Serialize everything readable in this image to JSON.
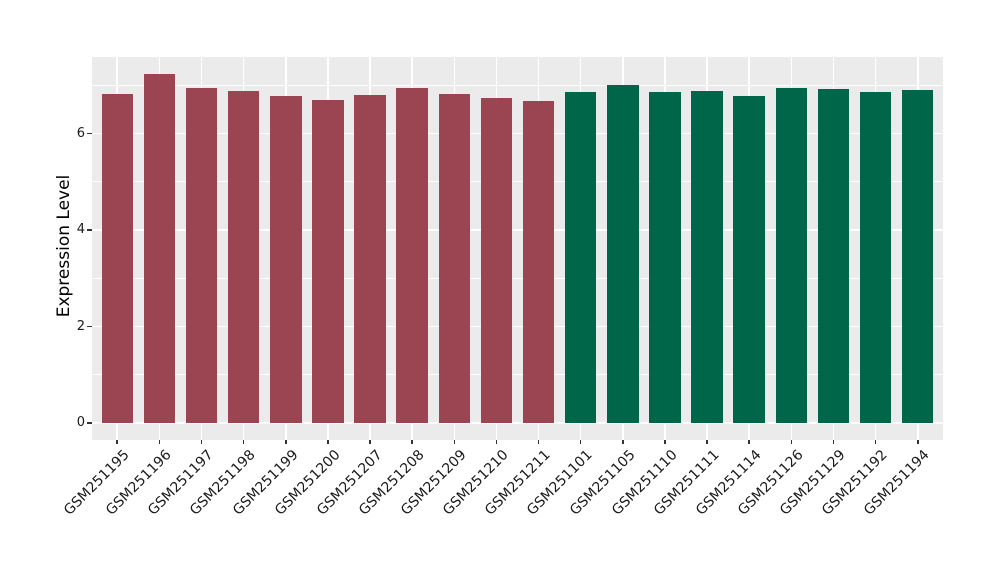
{
  "chart_data": {
    "type": "bar",
    "title": "",
    "xlabel": "",
    "ylabel": "Expression Level",
    "categories": [
      "GSM251195",
      "GSM251196",
      "GSM251197",
      "GSM251198",
      "GSM251199",
      "GSM251200",
      "GSM251207",
      "GSM251208",
      "GSM251209",
      "GSM251210",
      "GSM251211",
      "GSM251101",
      "GSM251105",
      "GSM251110",
      "GSM251111",
      "GSM251114",
      "GSM251126",
      "GSM251129",
      "GSM251192",
      "GSM251194"
    ],
    "values": [
      6.81,
      7.23,
      6.94,
      6.88,
      6.78,
      6.69,
      6.8,
      6.95,
      6.82,
      6.74,
      6.67,
      6.85,
      7.0,
      6.85,
      6.89,
      6.78,
      6.94,
      6.93,
      6.87,
      6.91
    ],
    "bar_colors": [
      "#9B4452",
      "#9B4452",
      "#9B4452",
      "#9B4452",
      "#9B4452",
      "#9B4452",
      "#9B4452",
      "#9B4452",
      "#9B4452",
      "#9B4452",
      "#9B4452",
      "#006649",
      "#006649",
      "#006649",
      "#006649",
      "#006649",
      "#006649",
      "#006649",
      "#006649",
      "#006649"
    ],
    "group_palette": {
      "red_group": "#9B4452",
      "green_group": "#006649"
    },
    "yticks": [
      0,
      2,
      4,
      6
    ],
    "minor_gridlines": [
      1,
      3,
      5,
      7
    ],
    "ylim": [
      -0.34,
      7.57
    ],
    "x_tick_rotation_deg": 45,
    "grid": "on",
    "legend": "none",
    "panel_background": "#EBEBEB",
    "gridline_color": "#FFFFFF",
    "axis_text_color": "#1A1A1A",
    "tick_mark_color": "#333333"
  }
}
